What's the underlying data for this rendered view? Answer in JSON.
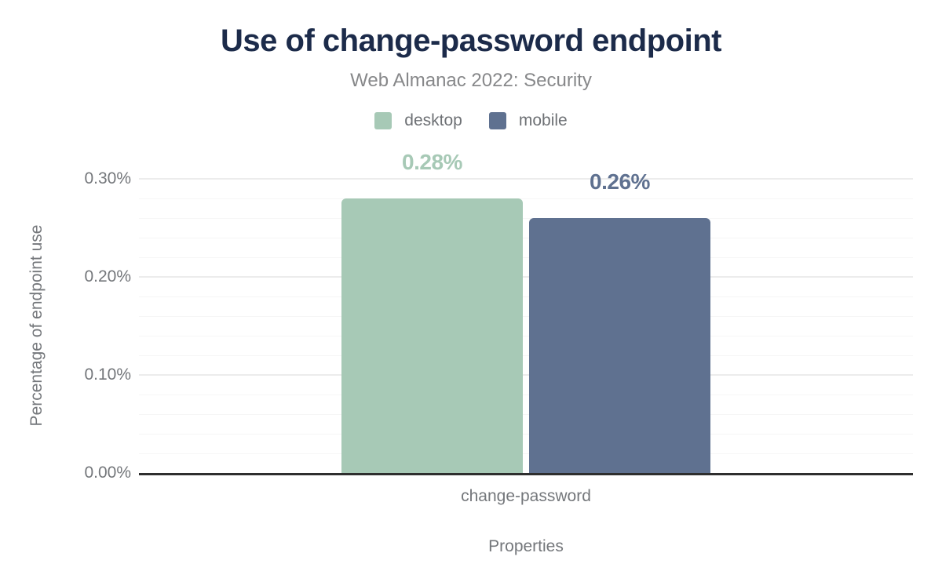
{
  "chart_data": {
    "type": "bar",
    "title": "Use of change-password endpoint",
    "subtitle": "Web Almanac 2022: Security",
    "xlabel": "Properties",
    "ylabel": "Percentage of endpoint use",
    "categories": [
      "change-password"
    ],
    "series": [
      {
        "name": "desktop",
        "values": [
          0.28
        ],
        "label": "0.28%",
        "color": "#a7c9b6"
      },
      {
        "name": "mobile",
        "values": [
          0.26
        ],
        "label": "0.26%",
        "color": "#5f7190"
      }
    ],
    "ylim": [
      0,
      0.3
    ],
    "ytick_values": [
      0,
      0.1,
      0.2,
      0.3
    ],
    "ytick_labels": [
      "0.00%",
      "0.10%",
      "0.20%",
      "0.30%"
    ],
    "minor_gridline_step": 0.02,
    "grid": "horizontal",
    "legend_position": "top"
  },
  "colors": {
    "title": "#1c2b4a",
    "subtitle": "#87888a",
    "axis_text": "#74777b",
    "axis_line": "#2e2e2e",
    "gridline_major": "#ececec",
    "gridline_minor": "#f6f6f6",
    "background": "#ffffff",
    "desktop": "#a7c9b6",
    "mobile": "#5f7190"
  }
}
